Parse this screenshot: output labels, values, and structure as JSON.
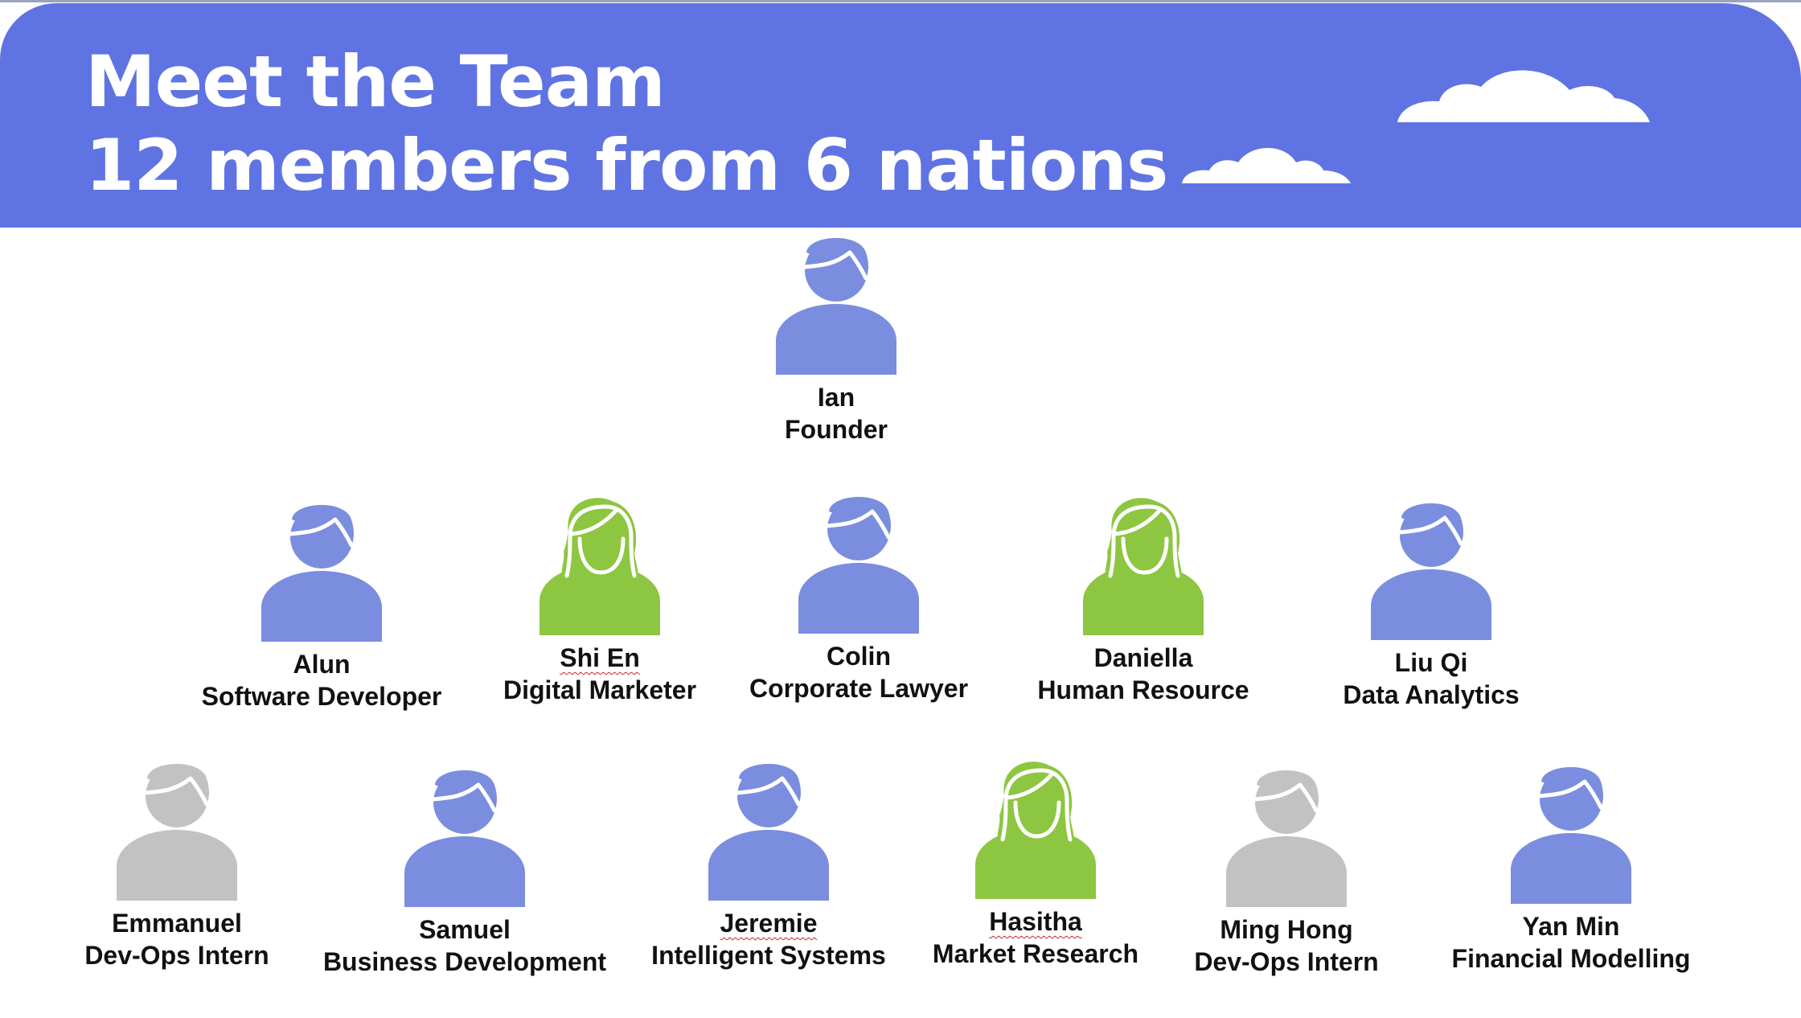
{
  "header": {
    "title_line1": "Meet the Team",
    "title_line2": "12 members from 6 nations",
    "background_color": "#5f74e2"
  },
  "colors": {
    "male": "#7b8ddf",
    "female": "#8dc641",
    "intern": "#c2c2c2"
  },
  "members": [
    {
      "id": "ian",
      "name": "Ian",
      "role": "Founder",
      "icon": "male-person-icon",
      "color": "#7b8ddf"
    },
    {
      "id": "alun",
      "name": "Alun",
      "role": "Software Developer",
      "icon": "male-person-icon",
      "color": "#7b8ddf"
    },
    {
      "id": "shi-en",
      "name": "Shi En",
      "role": "Digital Marketer",
      "icon": "female-person-icon",
      "color": "#8dc641"
    },
    {
      "id": "colin",
      "name": "Colin",
      "role": "Corporate Lawyer",
      "icon": "male-person-icon",
      "color": "#7b8ddf"
    },
    {
      "id": "daniella",
      "name": "Daniella",
      "role": "Human Resource",
      "icon": "female-person-icon",
      "color": "#8dc641"
    },
    {
      "id": "liu-qi",
      "name": "Liu Qi",
      "role": "Data Analytics",
      "icon": "male-person-icon",
      "color": "#7b8ddf"
    },
    {
      "id": "emmanuel",
      "name": "Emmanuel",
      "role": "Dev-Ops Intern",
      "icon": "male-person-icon",
      "color": "#c2c2c2"
    },
    {
      "id": "samuel",
      "name": "Samuel",
      "role": "Business Development",
      "icon": "male-person-icon",
      "color": "#7b8ddf"
    },
    {
      "id": "jeremie",
      "name": "Jeremie",
      "role": "Intelligent Systems",
      "icon": "male-person-icon",
      "color": "#7b8ddf"
    },
    {
      "id": "hasitha",
      "name": "Hasitha",
      "role": "Market Research",
      "icon": "female-person-icon",
      "color": "#8dc641"
    },
    {
      "id": "ming-hong",
      "name": "Ming Hong",
      "role": "Dev-Ops Intern",
      "icon": "male-person-icon",
      "color": "#c2c2c2"
    },
    {
      "id": "yan-min",
      "name": "Yan Min",
      "role": "Financial Modelling",
      "icon": "male-person-icon",
      "color": "#7b8ddf"
    }
  ]
}
